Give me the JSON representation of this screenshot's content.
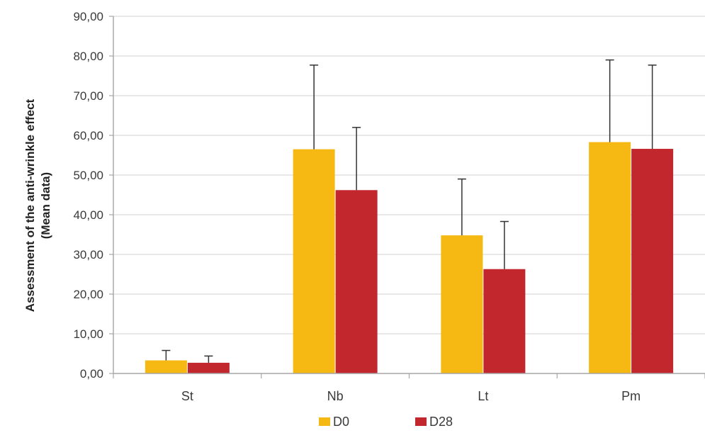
{
  "chart_data": {
    "type": "bar",
    "title": "",
    "xlabel": "",
    "ylabel_line1": "Assessment of the anti-wrinkle effect",
    "ylabel_line2": "(Mean data)",
    "ylim": [
      0,
      90
    ],
    "ytick_step": 10,
    "ytick_labels": [
      "0,00",
      "10,00",
      "20,00",
      "30,00",
      "40,00",
      "50,00",
      "60,00",
      "70,00",
      "80,00",
      "90,00"
    ],
    "categories": [
      "St",
      "Nb",
      "Lt",
      "Pm"
    ],
    "series": [
      {
        "name": "D0",
        "color": "#F6B913",
        "values": [
          3.3,
          56.5,
          34.8,
          58.3
        ],
        "error": [
          2.5,
          21.2,
          14.2,
          20.7
        ]
      },
      {
        "name": "D28",
        "color": "#C1272D",
        "values": [
          2.7,
          46.2,
          26.3,
          56.6
        ],
        "error": [
          1.7,
          15.8,
          12.0,
          21.1
        ]
      }
    ],
    "grid": "horizontal",
    "legend_position": "bottom-center",
    "grid_color": "#D9D9D9",
    "axis_color": "#A6A6A6",
    "errorbar_color": "#333333"
  }
}
